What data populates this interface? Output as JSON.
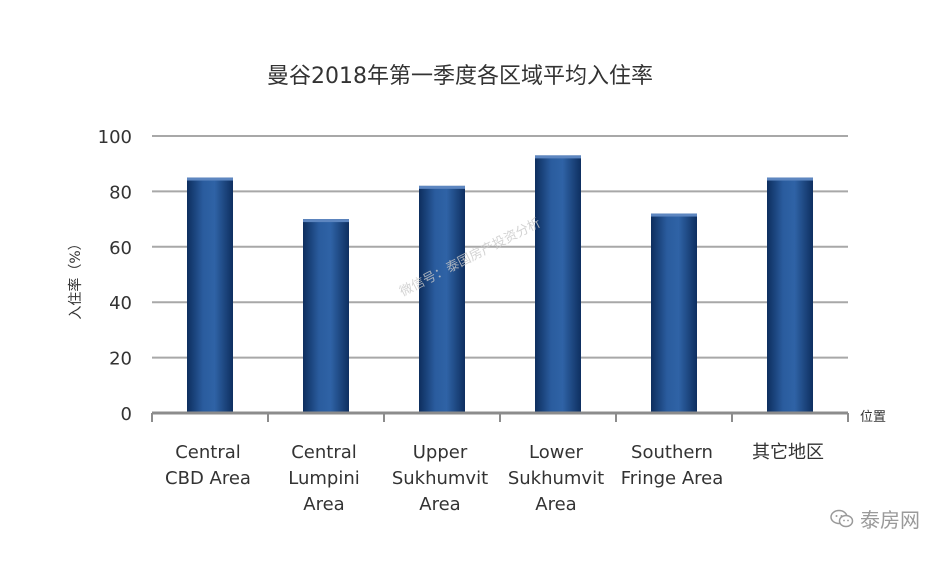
{
  "chart_data": {
    "type": "bar",
    "title": "曼谷2018年第一季度各区域平均入住率",
    "ylabel": "入住率（%）",
    "xlabel": "位置",
    "categories": [
      [
        "Central",
        "CBD Area"
      ],
      [
        "Central",
        "Lumpini",
        "Area"
      ],
      [
        "Upper",
        "Sukhumvit",
        "Area"
      ],
      [
        "Lower",
        "Sukhumvit",
        "Area"
      ],
      [
        "Southern",
        "Fringe Area"
      ],
      [
        "其它地区"
      ]
    ],
    "values": [
      85,
      70,
      82,
      93,
      72,
      85
    ],
    "ylim": [
      0,
      100
    ],
    "yticks": [
      "0",
      "20",
      "40",
      "60",
      "80",
      "100"
    ],
    "grid": true,
    "bar_color": "#1f4e8c"
  },
  "watermark": {
    "brand": "泰房网",
    "diagonal": "微信号：泰国房产投资分析"
  }
}
